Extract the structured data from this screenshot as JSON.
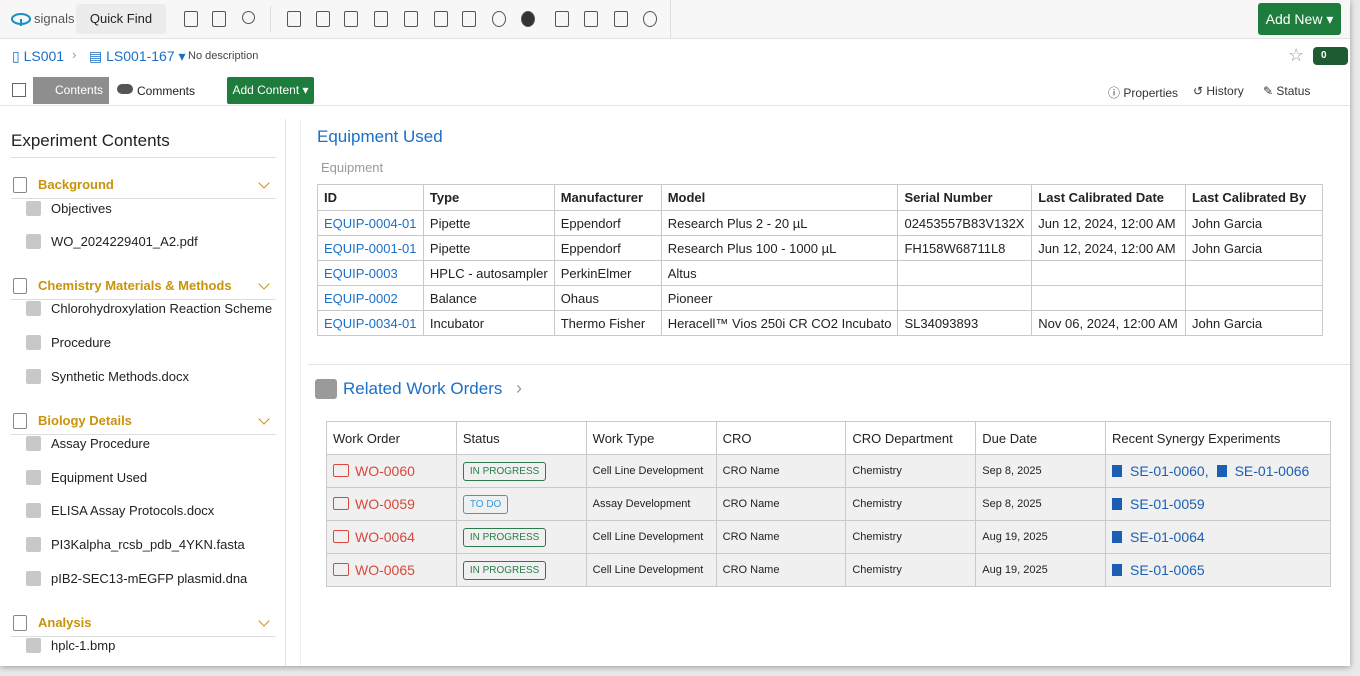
{
  "app": {
    "logo": "signals",
    "quick_find": "Quick Find",
    "add_new": "Add New"
  },
  "breadcrumb": {
    "project": "LS001",
    "experiment": "LS001-167",
    "description": "No description",
    "badge": "0"
  },
  "toolbar": {
    "contents": "Contents",
    "comments": "Comments",
    "add_content": "Add Content",
    "properties": "Properties",
    "history": "History",
    "status": "Status"
  },
  "sidebar": {
    "title": "Experiment Contents",
    "sections": [
      {
        "name": "Background",
        "items": [
          "Objectives",
          "WO_2024229401_A2.pdf"
        ]
      },
      {
        "name": "Chemistry Materials & Methods",
        "items": [
          "Chlorohydroxylation Reaction Scheme",
          "Procedure",
          "Synthetic Methods.docx"
        ]
      },
      {
        "name": "Biology Details",
        "items": [
          "Assay Procedure",
          "Equipment Used",
          "ELISA Assay Protocols.docx",
          "PI3Kalpha_rcsb_pdb_4YKN.fasta",
          "pIB2-SEC13-mEGFP plasmid.dna"
        ]
      },
      {
        "name": "Analysis",
        "items": [
          "hplc-1.bmp"
        ]
      }
    ]
  },
  "equipment": {
    "title": "Equipment Used",
    "subtitle": "Equipment",
    "columns": [
      "ID",
      "Type",
      "Manufacturer",
      "Model",
      "Serial Number",
      "Last Calibrated Date",
      "Last Calibrated By"
    ],
    "rows": [
      [
        "EQUIP-0004-01",
        "Pipette",
        "Eppendorf",
        "Research Plus 2 - 20 µL",
        "02453557B83V132X",
        "Jun 12, 2024, 12:00 AM",
        "John Garcia"
      ],
      [
        "EQUIP-0001-01",
        "Pipette",
        "Eppendorf",
        "Research Plus 100 - 1000 µL",
        "FH158W68711L8",
        "Jun 12, 2024, 12:00 AM",
        "John Garcia"
      ],
      [
        "EQUIP-0003",
        "HPLC - autosampler",
        "PerkinElmer",
        "Altus",
        null,
        null,
        null
      ],
      [
        "EQUIP-0002",
        "Balance",
        "Ohaus",
        "Pioneer",
        null,
        null,
        null
      ],
      [
        "EQUIP-0034-01",
        "Incubator",
        "Thermo Fisher",
        "Heracell™ Vios 250i CR CO2 Incubato",
        "SL34093893",
        "Nov 06, 2024, 12:00 AM",
        "John Garcia"
      ]
    ]
  },
  "work_orders": {
    "title": "Related Work Orders",
    "columns": [
      "Work Order",
      "Status",
      "Work Type",
      "CRO",
      "CRO Department",
      "Due Date",
      "Recent Synergy Experiments"
    ],
    "rows": [
      {
        "work_order": "WO-0060",
        "status": "IN PROGRESS",
        "work_type": "Cell Line Development",
        "cro": "CRO Name",
        "department": "Chemistry",
        "due_date": "Sep 8, 2025",
        "experiments": [
          "SE-01-0060,",
          "SE-01-0066"
        ]
      },
      {
        "work_order": "WO-0059",
        "status": "TO DO",
        "work_type": "Assay Development",
        "cro": "CRO Name",
        "department": "Chemistry",
        "due_date": "Sep 8, 2025",
        "experiments": [
          "SE-01-0059"
        ]
      },
      {
        "work_order": "WO-0064",
        "status": "IN PROGRESS",
        "work_type": "Cell Line Development",
        "cro": "CRO Name",
        "department": "Chemistry",
        "due_date": "Aug 19, 2025",
        "experiments": [
          "SE-01-0064"
        ]
      },
      {
        "work_order": "WO-0065",
        "status": "IN PROGRESS",
        "work_type": "Cell Line Development",
        "cro": "CRO Name",
        "department": "Chemistry",
        "due_date": "Aug 19, 2025",
        "experiments": [
          "SE-01-0065"
        ]
      }
    ]
  }
}
